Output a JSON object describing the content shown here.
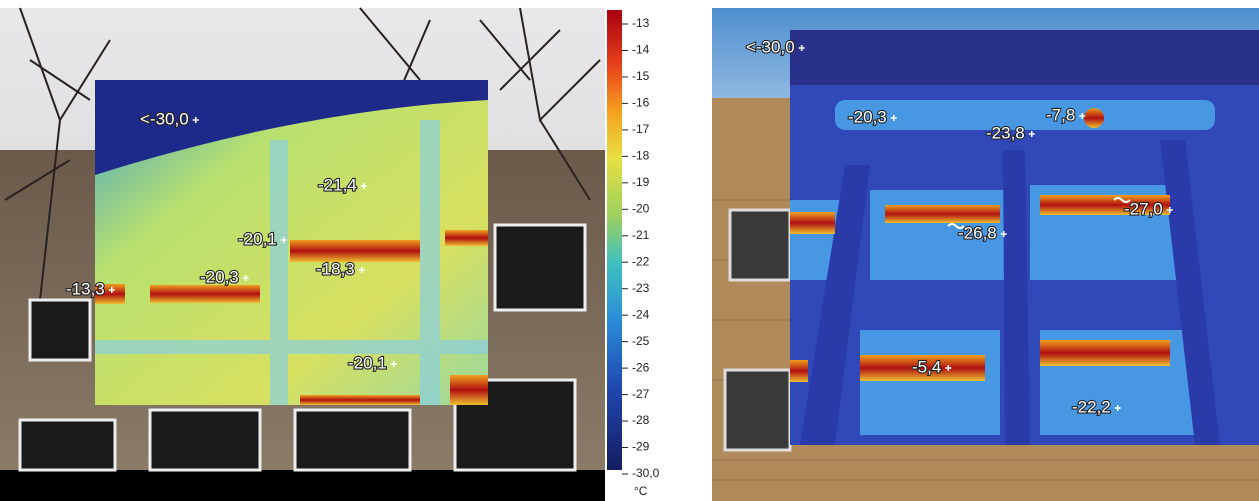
{
  "left_image": {
    "labels": [
      "<-30,0",
      "-21,4",
      "-20,1",
      "-20,3",
      "-18,3",
      "-13,3",
      "-20,1"
    ]
  },
  "colorbar": {
    "ticks": [
      "-13",
      "-14",
      "-15",
      "-16",
      "-17",
      "-18",
      "-19",
      "-20",
      "-21",
      "-22",
      "-23",
      "-24",
      "-25",
      "-26",
      "-27",
      "-28",
      "-29",
      "-30,0"
    ],
    "unit": "°C"
  },
  "right_image": {
    "labels": [
      "<-30,0",
      "-20,3",
      "-7,8",
      "-23,8",
      "-26,8",
      "-27,0",
      "-5,4",
      "-22,2"
    ]
  }
}
